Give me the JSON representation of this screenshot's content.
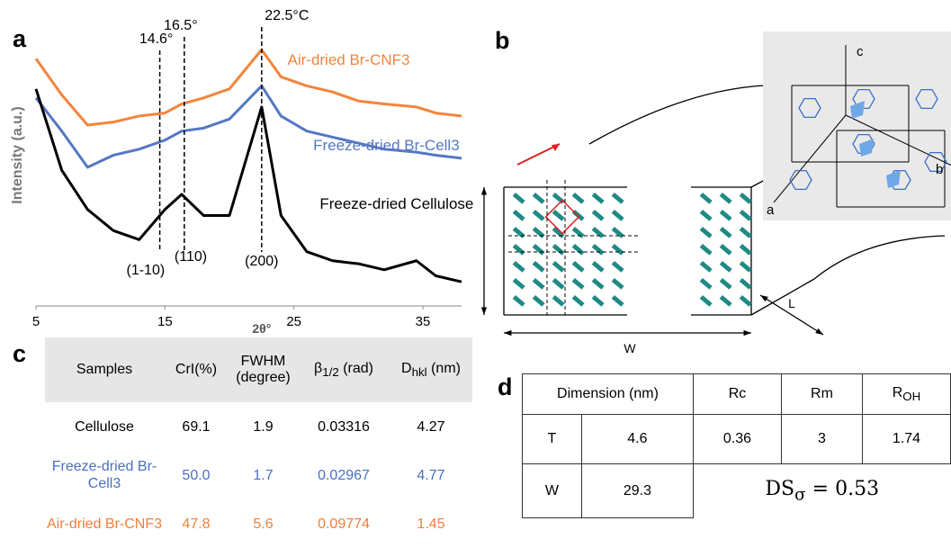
{
  "panel_labels": [
    "a",
    "b",
    "c",
    "d"
  ],
  "chart_data": {
    "type": "line",
    "xlabel": "2θ°",
    "ylabel": "Intensity (a.u.)",
    "x": [
      5,
      7,
      9,
      11,
      13,
      15,
      16.3,
      18,
      20,
      22.5,
      24,
      26,
      28,
      30,
      32,
      34.5,
      36,
      38
    ],
    "xlim": [
      5,
      38
    ],
    "xticks": [
      5,
      15,
      25,
      35
    ],
    "ylim": [
      0,
      100
    ],
    "series": [
      {
        "name": "Air-dried Br-CNF3",
        "color": "#f4843c",
        "values": [
          82,
          70,
          60,
          61,
          63,
          64,
          67,
          69,
          72,
          85,
          76,
          73,
          71,
          68,
          67,
          66,
          64,
          63
        ]
      },
      {
        "name": "Freeze-dried Br-Cell3",
        "color": "#5577c4",
        "values": [
          69,
          58,
          46,
          50,
          52,
          55,
          58,
          59,
          62,
          73,
          63,
          58,
          56,
          54,
          52,
          51,
          50,
          49
        ]
      },
      {
        "name": "Freeze-dried Cellulose",
        "color": "#000000",
        "values": [
          72,
          45,
          32,
          25,
          22,
          32,
          37,
          30,
          30,
          66,
          30,
          18,
          15,
          14,
          12,
          15,
          10,
          8
        ]
      }
    ],
    "annotations": [
      {
        "label": "14.6°",
        "x": 14.6
      },
      {
        "label": "16.5°",
        "x": 16.5
      },
      {
        "label": "22.5°C",
        "x": 22.5
      }
    ],
    "peak_labels": [
      {
        "label": "(1-10)",
        "x": 13.5
      },
      {
        "label": "(110)",
        "x": 17
      },
      {
        "label": "(200)",
        "x": 22.5
      }
    ]
  },
  "diagram": {
    "axis_c": "c",
    "axis_a": "a",
    "axis_b": "b",
    "thickness": "T",
    "width": "W",
    "length": "L"
  },
  "table_c": {
    "header": [
      "Samples",
      "CrI(%)",
      "FWHM (degree)",
      {
        "main": "β",
        "sub": "1/2",
        "rest": " (rad)"
      },
      {
        "main": "D",
        "sub": "hkl",
        "rest": " (nm)"
      }
    ],
    "rows": [
      {
        "color": "#000000",
        "cells": [
          "Cellulose",
          "69.1",
          "1.9",
          "0.03316",
          "4.27"
        ]
      },
      {
        "color": "#4a6fc0",
        "cells": [
          "Freeze-dried Br-Cell3",
          "50.0",
          "1.7",
          "0.02967",
          "4.77"
        ]
      },
      {
        "color": "#f07f3a",
        "cells": [
          "Air-dried Br-CNF3",
          "47.8",
          "5.6",
          "0.09774",
          "1.45"
        ]
      }
    ]
  },
  "table_d": {
    "header": [
      "Dimension (nm)",
      "Rc",
      "Rm",
      {
        "main": "R",
        "sub": "OH",
        "rest": ""
      }
    ],
    "rows": [
      [
        "T",
        "4.6",
        "0.36",
        "3",
        "1.74"
      ],
      [
        "W",
        "29.3"
      ]
    ],
    "equation": {
      "main": "DS",
      "sub": "σ",
      "rest": " = 0.53"
    }
  }
}
